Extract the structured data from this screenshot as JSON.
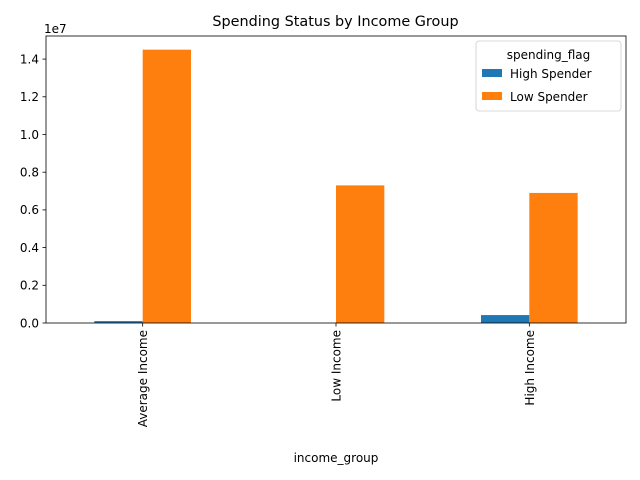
{
  "chart_data": {
    "type": "bar",
    "title": "Spending Status by Income Group",
    "xlabel": "income_group",
    "ylabel": "",
    "categories": [
      "Average Income",
      "Low Income",
      "High Income"
    ],
    "series": [
      {
        "name": "High Spender",
        "color": "#1f77b4",
        "values": [
          100000,
          0,
          420000
        ]
      },
      {
        "name": "Low Spender",
        "color": "#ff7f0e",
        "values": [
          14500000,
          7300000,
          6900000
        ]
      }
    ],
    "ylim": [
      0,
      15225000
    ],
    "y_ticks": [
      0,
      2000000,
      4000000,
      6000000,
      8000000,
      10000000,
      12000000,
      14000000
    ],
    "y_tick_labels": [
      "0.0",
      "0.2",
      "0.4",
      "0.6",
      "0.8",
      "1.0",
      "1.2",
      "1.4"
    ],
    "y_offset_text": "1e7",
    "legend": {
      "title": "spending_flag",
      "placement": "top-right"
    },
    "grid": false
  }
}
